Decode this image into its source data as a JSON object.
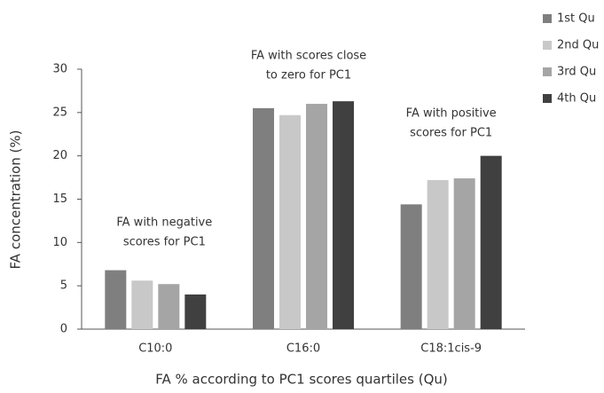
{
  "chart_data": {
    "type": "bar",
    "x_label": "FA % according to PC1 scores quartiles (Qu)",
    "y_label": "FA concentration (%)",
    "categories": [
      "C10:0",
      "C16:0",
      "C18:1cis-9"
    ],
    "series": [
      {
        "name": "1st Qu",
        "color": "#7f7f7f",
        "values": [
          6.8,
          25.5,
          14.4
        ]
      },
      {
        "name": "2nd Qu",
        "color": "#c8c8c8",
        "values": [
          5.6,
          24.7,
          17.2
        ]
      },
      {
        "name": "3rd Qu",
        "color": "#a5a5a5",
        "values": [
          5.2,
          26.0,
          17.4
        ]
      },
      {
        "name": "4th Qu",
        "color": "#404040",
        "values": [
          4.0,
          26.3,
          20.0
        ]
      }
    ],
    "annotations": [
      [
        "FA with negative",
        "scores for PC1"
      ],
      [
        "FA with scores close",
        "to zero for PC1"
      ],
      [
        "FA with positive",
        "scores for PC1"
      ]
    ],
    "ylim": [
      0,
      30
    ],
    "yticks": [
      0,
      5,
      10,
      15,
      20,
      25,
      30
    ],
    "grid": false,
    "legend": "top-right"
  }
}
